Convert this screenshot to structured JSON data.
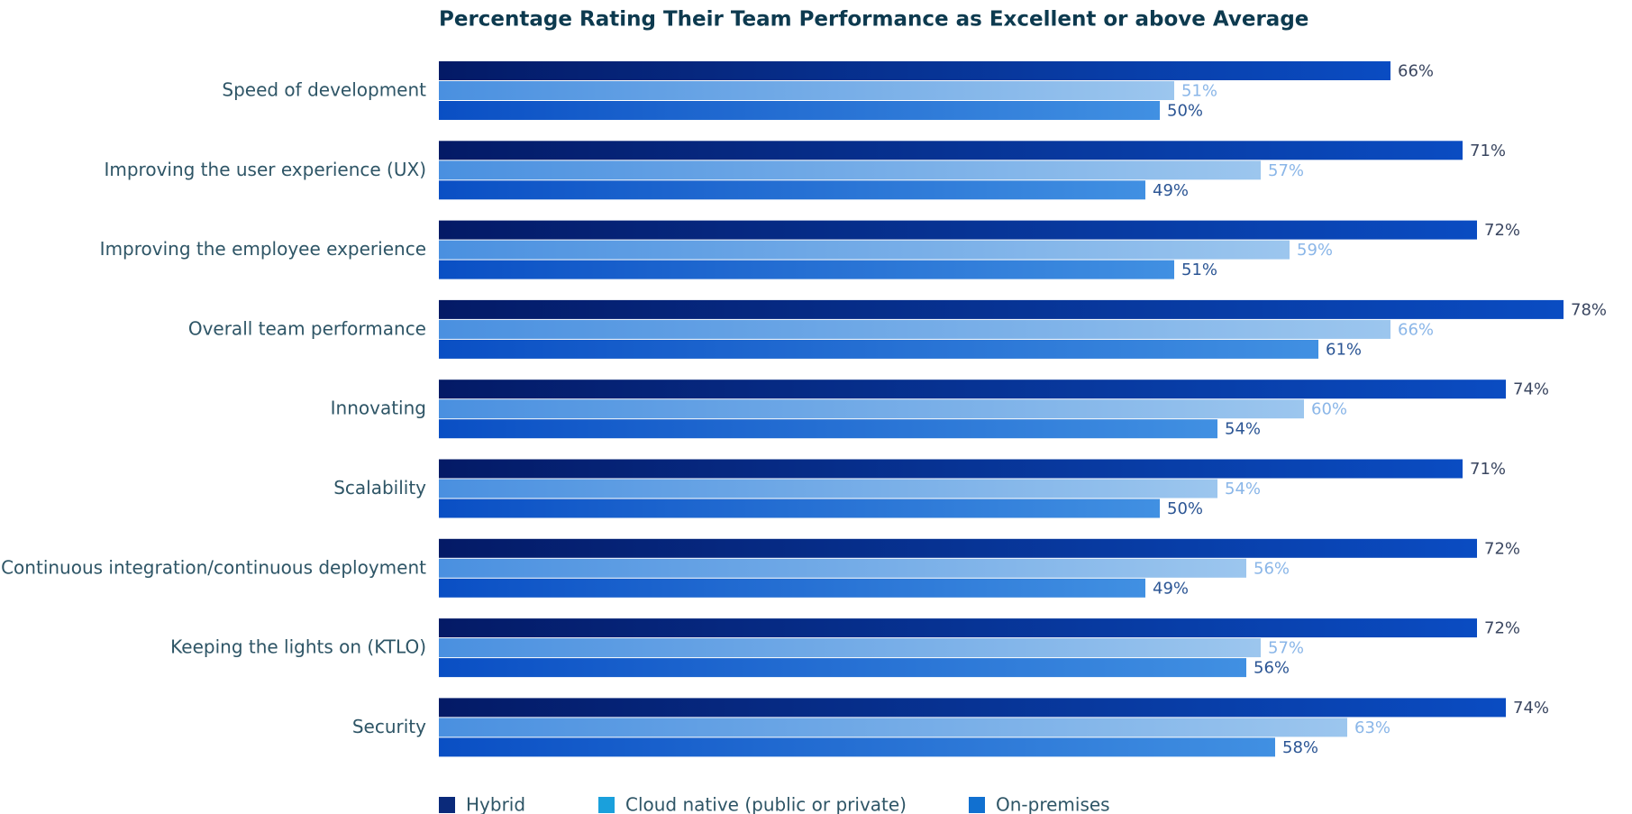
{
  "chart_data": {
    "type": "hbar",
    "title": "Percentage Rating Their Team Performance as Excellent or above Average",
    "categories": [
      "Speed of development",
      "Improving the user experience (UX)",
      "Improving the employee experience",
      "Overall team performance",
      "Innovating",
      "Scalability",
      "Continuous integration/continuous deployment",
      "Keeping the lights on (KTLO)",
      "Security"
    ],
    "series": [
      {
        "name": "Hybrid",
        "color": "#0b2a7a",
        "values": [
          66,
          71,
          72,
          78,
          74,
          71,
          72,
          72,
          74
        ],
        "value_labels": [
          "66%",
          "71%",
          "72%",
          "78%",
          "74%",
          "71%",
          "72%",
          "72%",
          "74%"
        ]
      },
      {
        "name": "Cloud native (public or private)",
        "color": "#1aa0dc",
        "values": [
          51,
          57,
          59,
          66,
          60,
          54,
          56,
          57,
          63
        ],
        "value_labels": [
          "51%",
          "57%",
          "59%",
          "66%",
          "60%",
          "54%",
          "56%",
          "57%",
          "63%"
        ]
      },
      {
        "name": "On-premises",
        "color": "#1170d0",
        "values": [
          50,
          49,
          51,
          61,
          54,
          50,
          49,
          56,
          58
        ],
        "value_labels": [
          "50%",
          "49%",
          "51%",
          "61%",
          "54%",
          "50%",
          "49%",
          "56%",
          "58%"
        ]
      }
    ],
    "legend": "bottom"
  }
}
